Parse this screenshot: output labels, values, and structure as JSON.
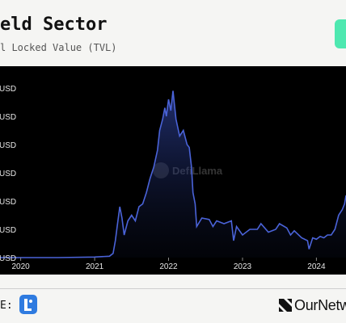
{
  "header": {
    "title": "eld Sector",
    "subtitle": "l Locked Value (TVL)",
    "badge_glyph": "",
    "badge_color": "#4ee8b0"
  },
  "footer": {
    "source_label": "E:",
    "brand_name": "OurNetw"
  },
  "chart_data": {
    "type": "area",
    "title": "eld Sector",
    "subtitle": "l Locked Value (TVL)",
    "watermark": "DefiLlama",
    "line_color": "#4a63d8",
    "x_tick_labels": [
      "2020",
      "2021",
      "2022",
      "2023",
      "2024"
    ],
    "y_tick_labels": [
      "USD",
      "USD",
      "USD",
      "USD",
      "USD",
      "USD",
      "USD"
    ],
    "y_ticks": [
      0,
      1,
      2,
      3,
      4,
      5,
      6
    ],
    "xlim": [
      2019.72,
      2024.4
    ],
    "ylim": [
      0,
      6.2
    ],
    "x": [
      2019.72,
      2020.5,
      2021.0,
      2021.2,
      2021.25,
      2021.28,
      2021.31,
      2021.34,
      2021.37,
      2021.4,
      2021.45,
      2021.5,
      2021.55,
      2021.6,
      2021.65,
      2021.7,
      2021.75,
      2021.8,
      2021.85,
      2021.88,
      2021.92,
      2021.95,
      2021.97,
      2022.0,
      2022.03,
      2022.06,
      2022.1,
      2022.15,
      2022.2,
      2022.25,
      2022.28,
      2022.31,
      2022.33,
      2022.36,
      2022.38,
      2022.45,
      2022.55,
      2022.6,
      2022.65,
      2022.75,
      2022.85,
      2022.88,
      2022.92,
      2023.0,
      2023.1,
      2023.2,
      2023.25,
      2023.35,
      2023.45,
      2023.5,
      2023.6,
      2023.65,
      2023.7,
      2023.8,
      2023.88,
      2023.9,
      2023.95,
      2024.0,
      2024.05,
      2024.1,
      2024.15,
      2024.2,
      2024.25,
      2024.3,
      2024.35,
      2024.38,
      2024.4
    ],
    "values": [
      0,
      0,
      0.02,
      0.05,
      0.15,
      0.6,
      1.2,
      1.8,
      1.4,
      0.8,
      1.3,
      1.5,
      1.3,
      1.8,
      1.9,
      2.3,
      2.8,
      3.2,
      3.8,
      4.5,
      4.9,
      5.3,
      5.0,
      5.6,
      5.2,
      5.9,
      4.9,
      4.3,
      4.5,
      4.0,
      3.9,
      3.2,
      2.3,
      1.9,
      1.1,
      1.4,
      1.35,
      1.1,
      1.3,
      1.2,
      1.3,
      0.6,
      1.1,
      0.8,
      1.0,
      1.0,
      1.2,
      0.9,
      1.0,
      1.2,
      1.05,
      0.8,
      0.95,
      0.7,
      0.6,
      0.3,
      0.7,
      0.65,
      0.75,
      0.7,
      0.8,
      0.8,
      1.0,
      1.5,
      1.7,
      1.9,
      2.2
    ],
    "grid": false,
    "legend": "none"
  }
}
